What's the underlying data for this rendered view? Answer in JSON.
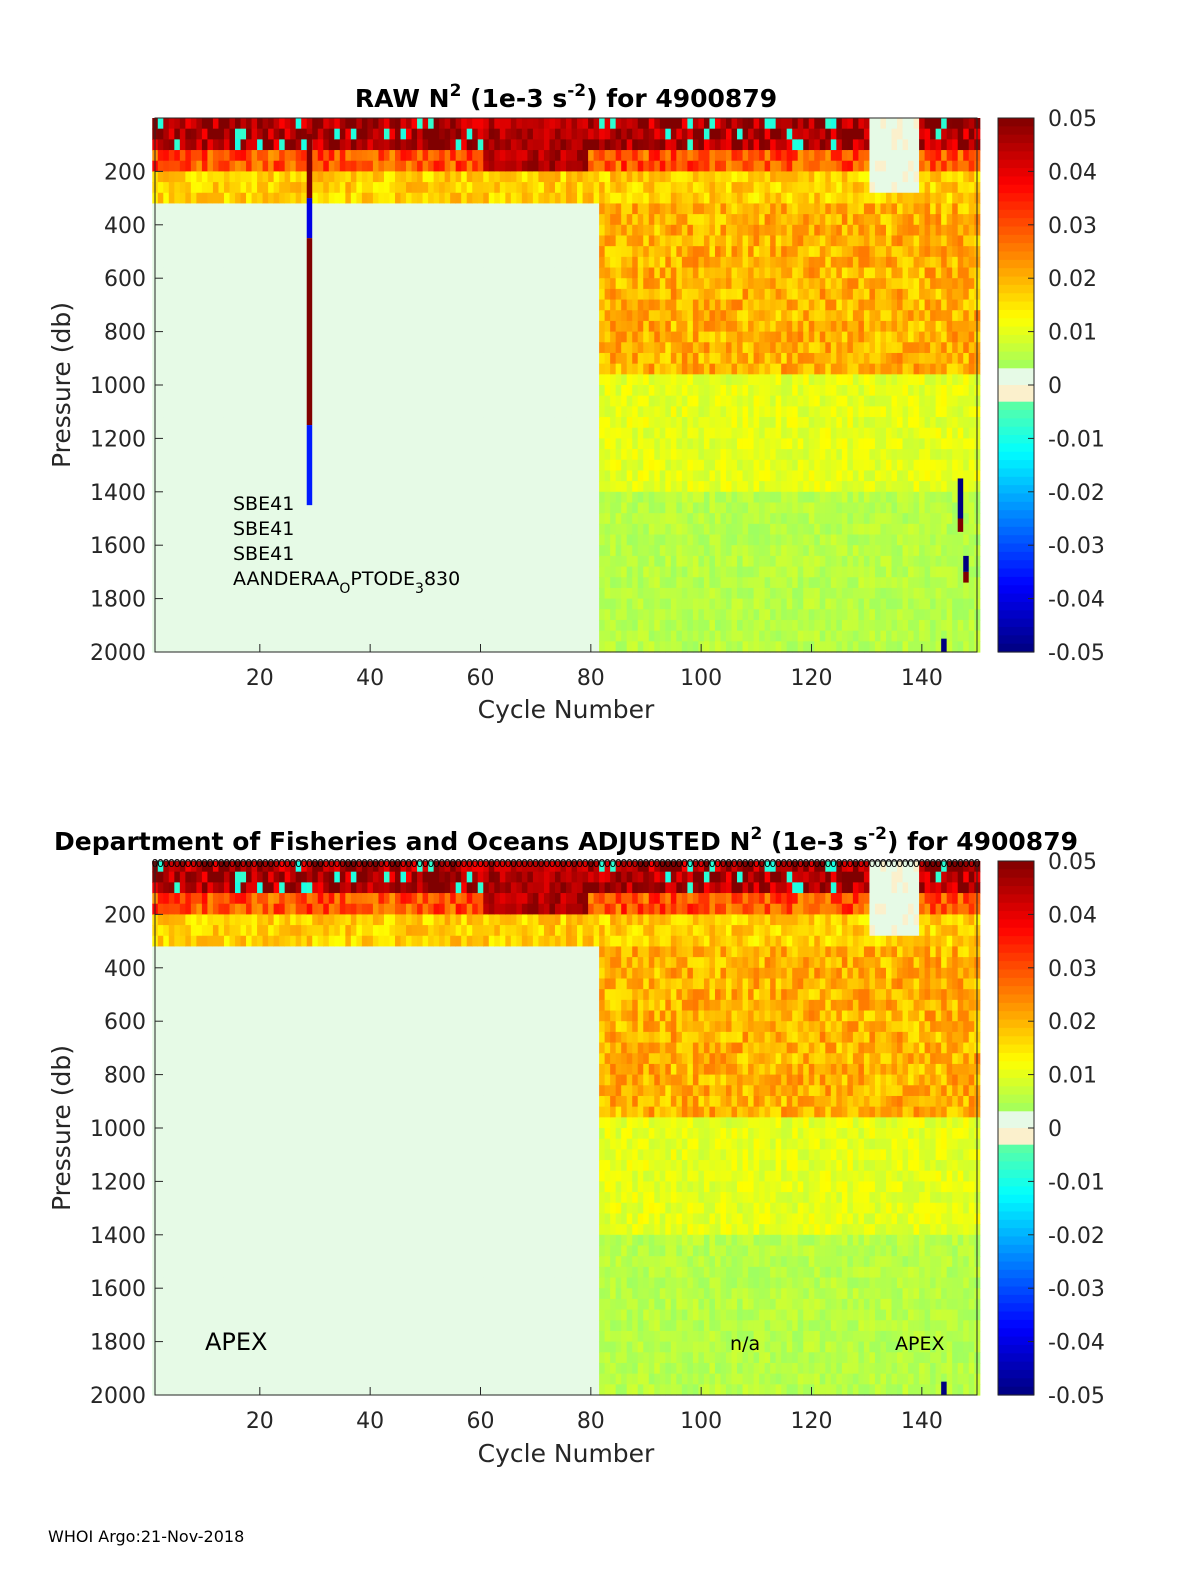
{
  "footer": "WHOI Argo:21-Nov-2018",
  "chart_data": [
    {
      "type": "heatmap",
      "title_parts": [
        "RAW N",
        "2",
        " (1e-3 s",
        "-2",
        ") for 4900879"
      ],
      "xlabel": "Cycle Number",
      "ylabel": "Pressure (db)",
      "xlim": [
        1,
        150
      ],
      "ylim": [
        2000,
        0
      ],
      "xticks": [
        20,
        40,
        60,
        80,
        100,
        120,
        140
      ],
      "yticks": [
        200,
        400,
        600,
        800,
        1000,
        1200,
        1400,
        1600,
        1800,
        2000
      ],
      "colorbar": {
        "range": [
          -0.05,
          0.05
        ],
        "ticks": [
          "0.05",
          "0.04",
          "0.03",
          "0.02",
          "0.01",
          "0",
          "-0.01",
          "-0.02",
          "-0.03",
          "-0.04",
          "-0.05"
        ]
      },
      "sensor_labels": [
        "SBE41",
        "SBE41",
        "SBE41"
      ],
      "sensor_label_last": [
        "AANDERAA",
        "O",
        "PTODE",
        "3",
        "830"
      ],
      "bad_columns": [
        {
          "cycle": 29,
          "segments": [
            [
              60,
              300,
              0.05
            ],
            [
              300,
              450,
              -0.04
            ],
            [
              450,
              1150,
              0.05
            ],
            [
              1150,
              1450,
              -0.035
            ]
          ]
        },
        {
          "cycle": 144,
          "segments": [
            [
              1950,
              2000,
              -0.05
            ]
          ]
        },
        {
          "cycle": 147,
          "segments": [
            [
              1350,
              1500,
              -0.05
            ],
            [
              1500,
              1550,
              0.05
            ]
          ]
        },
        {
          "cycle": 148,
          "segments": [
            [
              1640,
              1700,
              -0.05
            ],
            [
              1700,
              1740,
              0.05
            ]
          ]
        }
      ]
    },
    {
      "type": "heatmap",
      "title_parts": [
        "Department of Fisheries and Oceans  ADJUSTED N",
        "2",
        " (1e-3 s",
        "-2",
        ") for 4900879"
      ],
      "xlabel": "Cycle Number",
      "ylabel": "Pressure (db)",
      "xlim": [
        1,
        150
      ],
      "ylim": [
        2000,
        0
      ],
      "xticks": [
        20,
        40,
        60,
        80,
        100,
        120,
        140
      ],
      "yticks": [
        200,
        400,
        600,
        800,
        1000,
        1200,
        1400,
        1600,
        1800,
        2000
      ],
      "colorbar": {
        "range": [
          -0.05,
          0.05
        ],
        "ticks": [
          "0.05",
          "0.04",
          "0.03",
          "0.02",
          "0.01",
          "0",
          "-0.01",
          "-0.02",
          "-0.03",
          "-0.04",
          "-0.05"
        ]
      },
      "float_labels": [
        "APEX",
        "n/a",
        "APEX"
      ],
      "qc_flag_marker": "0",
      "qc_flag_cycles": [
        1,
        150
      ],
      "bad_columns": [
        {
          "cycle": 144,
          "segments": [
            [
              1950,
              2000,
              -0.05
            ]
          ]
        }
      ]
    }
  ]
}
